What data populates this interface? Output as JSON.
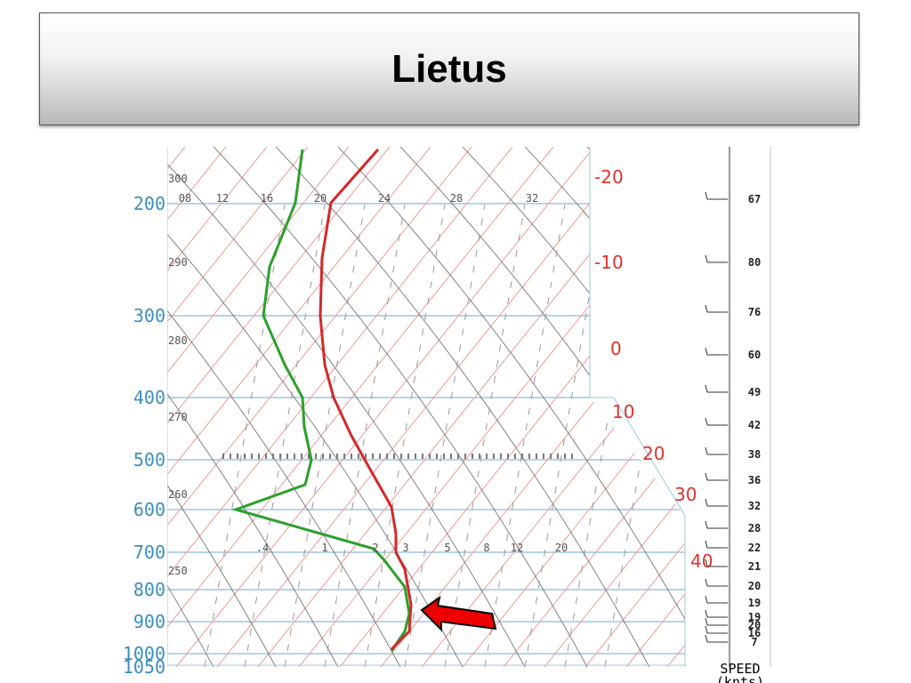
{
  "header": {
    "title": "Lietus"
  },
  "diagram": {
    "pressure_labels": [
      "200",
      "300",
      "400",
      "500",
      "600",
      "700",
      "800",
      "900",
      "1000",
      "1050"
    ],
    "temperature_labels": [
      "-20",
      "-10",
      "0",
      "10",
      "20",
      "30",
      "40"
    ],
    "mixing_ratio_labels": [
      ".4",
      "1",
      "2",
      "3",
      "5",
      "8",
      "12",
      "20"
    ],
    "upper_mixing_ratio_labels": [
      "08",
      "12",
      "16",
      "20",
      "24",
      "28",
      "32"
    ],
    "theta_labels": [
      "300",
      "290",
      "280",
      "270",
      "260",
      "250"
    ],
    "wind_speeds": [
      "67",
      "80",
      "76",
      "60",
      "49",
      "42",
      "38",
      "36",
      "32",
      "28",
      "22",
      "21",
      "20",
      "19",
      "19",
      "20",
      "16",
      "7"
    ],
    "speed_label": "SPEED",
    "speed_unit": "(knts)"
  }
}
